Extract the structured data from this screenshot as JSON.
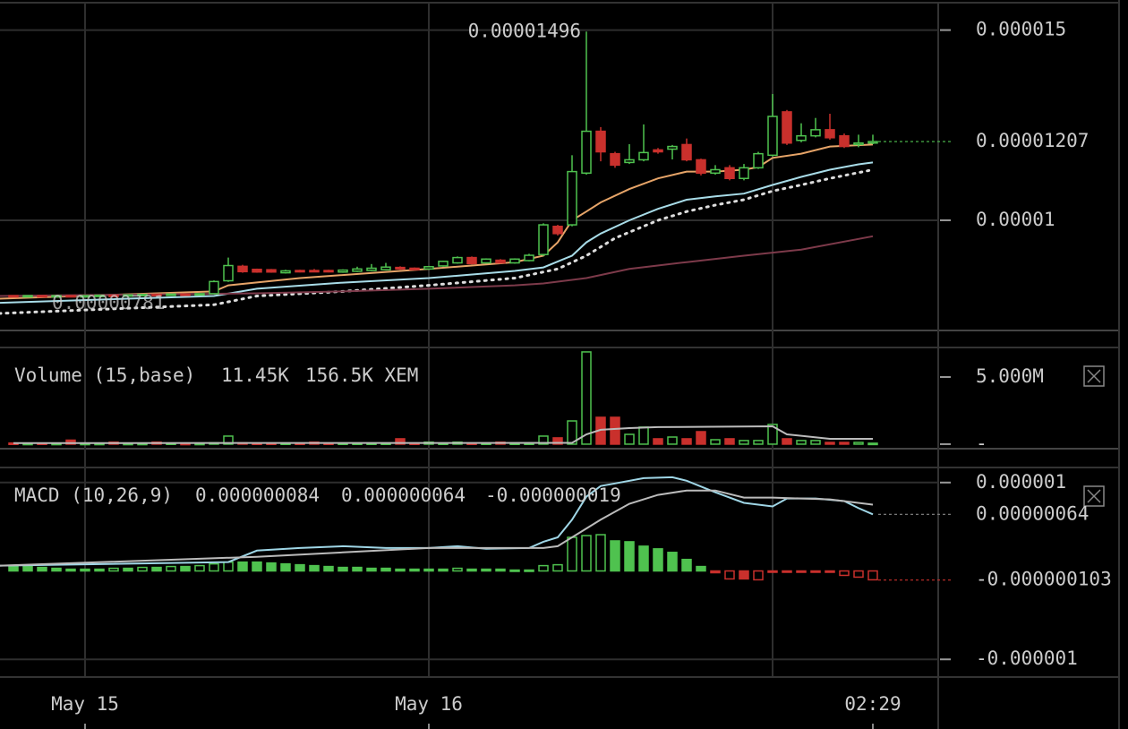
{
  "chart_data": [
    {
      "type": "candlestick",
      "xlim": [
        -5.9375,
        59.5625
      ],
      "xticks": [
        {
          "value": 0,
          "label": "May 15"
        },
        {
          "value": 24,
          "label": "May 16"
        },
        {
          "value": 55,
          "label": "02:29"
        }
      ],
      "xgrid": [
        0,
        24,
        48
      ],
      "ylim": [
        7.127e-06,
        1.572e-05
      ],
      "yticks": [
        1.5e-05,
        1e-05
      ],
      "grid": true,
      "up_color": "#4fc24f",
      "down_color": "#c9302c",
      "x": [
        -5,
        -4,
        -3,
        -2,
        -1,
        0,
        1,
        2,
        3,
        4,
        5,
        6,
        7,
        8,
        9,
        10,
        11,
        12,
        13,
        14,
        15,
        16,
        17,
        18,
        19,
        20,
        21,
        22,
        23,
        24,
        25,
        26,
        27,
        28,
        29,
        30,
        31,
        32,
        33,
        34,
        35,
        36,
        37,
        38,
        39,
        40,
        41,
        42,
        43,
        44,
        45,
        46,
        47,
        48,
        49,
        50,
        51,
        52,
        53,
        54,
        55
      ],
      "open": [
        8.02e-06,
        8e-06,
        8.02e-06,
        8.01e-06,
        8.02e-06,
        7.99e-06,
        8.02e-06,
        8.03e-06,
        8.01e-06,
        8.04e-06,
        8.05e-06,
        8.04e-06,
        8.06e-06,
        8.04e-06,
        8.07e-06,
        8.41e-06,
        8.79e-06,
        8.71e-06,
        8.7e-06,
        8.62e-06,
        8.68e-06,
        8.68e-06,
        8.68e-06,
        8.64e-06,
        8.66e-06,
        8.68e-06,
        8.7e-06,
        8.76e-06,
        8.74e-06,
        8.72e-06,
        8.8e-06,
        8.88e-06,
        9.02e-06,
        8.88e-06,
        8.95e-06,
        8.88e-06,
        8.94e-06,
        9.1e-06,
        9.84e-06,
        9.88e-06,
        1.124e-05,
        1.234e-05,
        1.175e-05,
        1.152e-05,
        1.159e-05,
        1.185e-05,
        1.187e-05,
        1.199e-05,
        1.159e-05,
        1.124e-05,
        1.138e-05,
        1.11e-05,
        1.138e-05,
        1.171e-05,
        1.285e-05,
        1.21e-05,
        1.222e-05,
        1.238e-05,
        1.222e-05,
        1.199e-05,
        1.203e-05
      ],
      "high": [
        8.03e-06,
        8.03e-06,
        8.03e-06,
        8.03e-06,
        8.03e-06,
        8.03e-06,
        8.04e-06,
        8.04e-06,
        8.05e-06,
        8.06e-06,
        8.06e-06,
        8.07e-06,
        8.07e-06,
        8.08e-06,
        8.42e-06,
        9.02e-06,
        8.83e-06,
        8.73e-06,
        8.72e-06,
        8.7e-06,
        8.7e-06,
        8.72e-06,
        8.7e-06,
        8.71e-06,
        8.78e-06,
        8.85e-06,
        8.88e-06,
        8.79e-06,
        8.76e-06,
        8.8e-06,
        8.94e-06,
        9.05e-06,
        9.05e-06,
        9e-06,
        8.98e-06,
        9e-06,
        9.12e-06,
        9.92e-06,
        9.88e-06,
        1.171e-05,
        1.496e-05,
        1.245e-05,
        1.18e-05,
        1.2e-05,
        1.252e-05,
        1.19e-05,
        1.198e-05,
        1.215e-05,
        1.162e-05,
        1.145e-05,
        1.145e-05,
        1.148e-05,
        1.18e-05,
        1.332e-05,
        1.29e-05,
        1.255e-05,
        1.269e-05,
        1.28e-05,
        1.228e-05,
        1.225e-05,
        1.225e-05
      ],
      "low": [
        7.99e-06,
        7.99e-06,
        8e-06,
        8e-06,
        7.98e-06,
        7.98e-06,
        8.01e-06,
        8e-06,
        8e-06,
        8.03e-06,
        8.03e-06,
        8.03e-06,
        8.03e-06,
        8.03e-06,
        8.05e-06,
        8.38e-06,
        8.62e-06,
        8.62e-06,
        8.62e-06,
        8.6e-06,
        8.63e-06,
        8.64e-06,
        8.63e-06,
        8.62e-06,
        8.64e-06,
        8.66e-06,
        8.68e-06,
        8.7e-06,
        8.68e-06,
        8.7e-06,
        8.78e-06,
        8.86e-06,
        8.84e-06,
        8.86e-06,
        8.86e-06,
        8.86e-06,
        8.92e-06,
        9.06e-06,
        9.6e-06,
        9.84e-06,
        1.12e-05,
        1.155e-05,
        1.138e-05,
        1.148e-05,
        1.155e-05,
        1.175e-05,
        1.16e-05,
        1.155e-05,
        1.118e-05,
        1.12e-05,
        1.105e-05,
        1.105e-05,
        1.135e-05,
        1.168e-05,
        1.198e-05,
        1.205e-05,
        1.218e-05,
        1.212e-05,
        1.19e-05,
        1.192e-05,
        1.2e-05
      ],
      "close": [
        8e-06,
        8.02e-06,
        8.01e-06,
        8.02e-06,
        7.99e-06,
        8.02e-06,
        8.03e-06,
        8.01e-06,
        8.04e-06,
        8.05e-06,
        8.04e-06,
        8.06e-06,
        8.04e-06,
        8.07e-06,
        8.39e-06,
        8.81e-06,
        8.65e-06,
        8.64e-06,
        8.64e-06,
        8.67e-06,
        8.65e-06,
        8.66e-06,
        8.65e-06,
        8.69e-06,
        8.72e-06,
        8.74e-06,
        8.77e-06,
        8.72e-06,
        8.7e-06,
        8.78e-06,
        8.92e-06,
        9.02e-06,
        8.86e-06,
        8.98e-06,
        8.88e-06,
        8.98e-06,
        9.08e-06,
        9.88e-06,
        9.65e-06,
        1.128e-05,
        1.234e-05,
        1.18e-05,
        1.145e-05,
        1.159e-05,
        1.178e-05,
        1.18e-05,
        1.194e-05,
        1.159e-05,
        1.124e-05,
        1.133e-05,
        1.11e-05,
        1.138e-05,
        1.175e-05,
        1.273e-05,
        1.203e-05,
        1.222e-05,
        1.238e-05,
        1.217e-05,
        1.194e-05,
        1.203e-05,
        1.207e-05
      ],
      "lines": [
        {
          "color": "#e6a468",
          "dotted": false,
          "x": [
            -6,
            9,
            10,
            15,
            24,
            30,
            32,
            33,
            34,
            35,
            36,
            38,
            40,
            42,
            44,
            46,
            47,
            48,
            50,
            52,
            55
          ],
          "values": [
            7.94e-06,
            8.13e-06,
            8.29e-06,
            8.48e-06,
            8.72e-06,
            8.9e-06,
            9.07e-06,
            9.42e-06,
            1e-05,
            1.023e-05,
            1.047e-05,
            1.082e-05,
            1.11e-05,
            1.128e-05,
            1.128e-05,
            1.133e-05,
            1.14e-05,
            1.164e-05,
            1.175e-05,
            1.194e-05,
            1.199e-05
          ]
        },
        {
          "color": "#a8dce8",
          "dotted": false,
          "x": [
            -6,
            9,
            12,
            18,
            24,
            30,
            32,
            34,
            35,
            36,
            38,
            40,
            42,
            44,
            46,
            48,
            50,
            52,
            54,
            55
          ],
          "values": [
            7.83e-06,
            8.01e-06,
            8.2e-06,
            8.36e-06,
            8.48e-06,
            8.67e-06,
            8.76e-06,
            9.07e-06,
            9.42e-06,
            9.65e-06,
            1e-05,
            1.03e-05,
            1.054e-05,
            1.063e-05,
            1.07e-05,
            1.093e-05,
            1.114e-05,
            1.133e-05,
            1.147e-05,
            1.152e-05
          ]
        },
        {
          "color": "#dddddd",
          "dotted": true,
          "x": [
            -6,
            9,
            12,
            18,
            24,
            30,
            33,
            35,
            37,
            40,
            42,
            44,
            46,
            48,
            50,
            52,
            55
          ],
          "values": [
            7.55e-06,
            7.78e-06,
            8.01e-06,
            8.13e-06,
            8.29e-06,
            8.48e-06,
            8.72e-06,
            9.07e-06,
            9.53e-06,
            1e-05,
            1.023e-05,
            1.04e-05,
            1.054e-05,
            1.077e-05,
            1.093e-05,
            1.11e-05,
            1.133e-05
          ]
        },
        {
          "color": "#7d3a4a",
          "dotted": false,
          "x": [
            -6,
            12,
            18,
            24,
            30,
            32,
            35,
            38,
            42,
            46,
            50,
            55
          ],
          "values": [
            8.01e-06,
            8.08e-06,
            8.13e-06,
            8.2e-06,
            8.29e-06,
            8.34e-06,
            8.48e-06,
            8.72e-06,
            8.9e-06,
            9.07e-06,
            9.23e-06,
            9.58e-06
          ]
        }
      ],
      "high_label": {
        "label": "0.00001496",
        "value": 1.496e-05
      },
      "left_label": {
        "label": "0.00000781",
        "value": 7.81e-06
      },
      "last_price": {
        "label": "0.00001207",
        "value": 1.207e-05,
        "color": "#4fc24f"
      }
    },
    {
      "type": "volume",
      "legend": [
        "Volume (15,base)",
        "11.45K",
        "156.5K XEM"
      ],
      "ylim": [
        -270000,
        7200000
      ],
      "yticks": [
        {
          "value": 5000000,
          "label": "5.000M"
        },
        {
          "value": 0,
          "label": "-"
        }
      ],
      "x": [
        -5,
        -4,
        -3,
        -2,
        -1,
        0,
        1,
        2,
        3,
        4,
        5,
        6,
        7,
        8,
        9,
        10,
        11,
        12,
        13,
        14,
        15,
        16,
        17,
        18,
        19,
        20,
        21,
        22,
        23,
        24,
        25,
        26,
        27,
        28,
        29,
        30,
        31,
        32,
        33,
        34,
        35,
        36,
        37,
        38,
        39,
        40,
        41,
        42,
        43,
        44,
        45,
        46,
        47,
        48,
        49,
        50,
        51,
        52,
        53,
        54,
        55
      ],
      "values": [
        80000,
        60000,
        80000,
        60000,
        300000,
        60000,
        60000,
        150000,
        60000,
        60000,
        150000,
        80000,
        60000,
        60000,
        100000,
        600000,
        100000,
        80000,
        80000,
        80000,
        80000,
        150000,
        80000,
        80000,
        80000,
        80000,
        80000,
        400000,
        80000,
        150000,
        80000,
        150000,
        80000,
        80000,
        150000,
        80000,
        80000,
        600000,
        470000,
        1730000,
        6870000,
        2000000,
        2000000,
        730000,
        1270000,
        400000,
        530000,
        400000,
        930000,
        330000,
        400000,
        270000,
        270000,
        1470000,
        400000,
        270000,
        270000,
        130000,
        130000,
        130000,
        70000
      ],
      "line": {
        "color": "#bbbbbb",
        "x": [
          -5,
          34,
          35,
          36,
          38,
          40,
          48,
          49,
          52,
          55
        ],
        "values": [
          80000,
          100000,
          730000,
          1070000,
          1200000,
          1270000,
          1330000,
          730000,
          400000,
          400000
        ]
      }
    },
    {
      "type": "macd",
      "legend": [
        "MACD (10,26,9)",
        "0.000000084",
        "0.000000064",
        "-0.000000019"
      ],
      "legend_colors": [
        "#cccccc",
        "#4fc24f",
        "#a8dce8",
        "#bbbbbb"
      ],
      "ylim": [
        -1.19e-06,
        1.16e-06
      ],
      "yticks": [
        1e-06,
        -1e-06
      ],
      "x": [
        -5,
        -4,
        -3,
        -2,
        -1,
        0,
        1,
        2,
        3,
        4,
        5,
        6,
        7,
        8,
        9,
        10,
        11,
        12,
        13,
        14,
        15,
        16,
        17,
        18,
        19,
        20,
        21,
        22,
        23,
        24,
        25,
        26,
        27,
        28,
        29,
        30,
        31,
        32,
        33,
        34,
        35,
        36,
        37,
        38,
        39,
        40,
        41,
        42,
        43,
        44,
        45,
        46,
        47,
        48,
        49,
        50,
        51,
        52,
        53,
        54,
        55
      ],
      "histogram": [
        5e-08,
        5e-08,
        4e-08,
        3e-08,
        2e-08,
        2e-08,
        2e-08,
        3e-08,
        3e-08,
        4e-08,
        4e-08,
        5e-08,
        5e-08,
        6e-08,
        8e-08,
        1e-07,
        1e-07,
        1e-07,
        9e-08,
        8e-08,
        7e-08,
        6e-08,
        5e-08,
        4e-08,
        4e-08,
        3e-08,
        3e-08,
        2e-08,
        2e-08,
        2e-08,
        2e-08,
        3e-08,
        2e-08,
        2e-08,
        2e-08,
        1e-08,
        1e-08,
        6e-08,
        7e-08,
        3.8e-07,
        4e-07,
        4.1e-07,
        3.4e-07,
        3.3e-07,
        2.8e-07,
        2.5e-07,
        2.1e-07,
        1.3e-07,
        5e-08,
        -2e-08,
        -9e-08,
        -9e-08,
        -1e-07,
        -1e-08,
        -1e-08,
        -1e-08,
        -1e-08,
        -1e-08,
        -5e-08,
        -7e-08,
        -1e-07
      ],
      "lines": [
        {
          "color": "#9fd6e6",
          "x": [
            -6,
            10,
            12,
            15,
            18,
            21,
            24,
            26,
            28,
            31,
            32,
            33,
            34,
            35,
            36,
            37,
            39,
            41,
            42,
            44,
            46,
            48,
            49,
            51,
            53,
            54,
            55
          ],
          "values": [
            6e-08,
            1e-07,
            2.3e-07,
            2.6e-07,
            2.8e-07,
            2.6e-07,
            2.6e-07,
            2.8e-07,
            2.5e-07,
            2.6e-07,
            3.3e-07,
            3.8e-07,
            5.8e-07,
            8.4e-07,
            9.6e-07,
            9.9e-07,
            1.05e-06,
            1.06e-06,
            1.02e-06,
            8.9e-07,
            7.7e-07,
            7.3e-07,
            8.2e-07,
            8.2e-07,
            7.9e-07,
            7.1e-07,
            6.4e-07
          ]
        },
        {
          "color": "#bbbbbb",
          "x": [
            -6,
            12,
            18,
            24,
            30,
            32,
            33,
            34,
            36,
            38,
            40,
            42,
            44,
            46,
            48,
            52,
            55
          ],
          "values": [
            6e-08,
            1.6e-07,
            2.1e-07,
            2.6e-07,
            2.6e-07,
            2.6e-07,
            2.8e-07,
            3.8e-07,
            5.8e-07,
            7.6e-07,
            8.6e-07,
            9.1e-07,
            9.1e-07,
            8.3e-07,
            8.3e-07,
            8.1e-07,
            7.5e-07
          ]
        }
      ],
      "markers": [
        {
          "label": "0.00000064",
          "value": 6.4e-07,
          "color": "#888888"
        },
        {
          "label": "-0.000000103",
          "value": -1.03e-07,
          "color": "#c9302c"
        }
      ]
    }
  ]
}
